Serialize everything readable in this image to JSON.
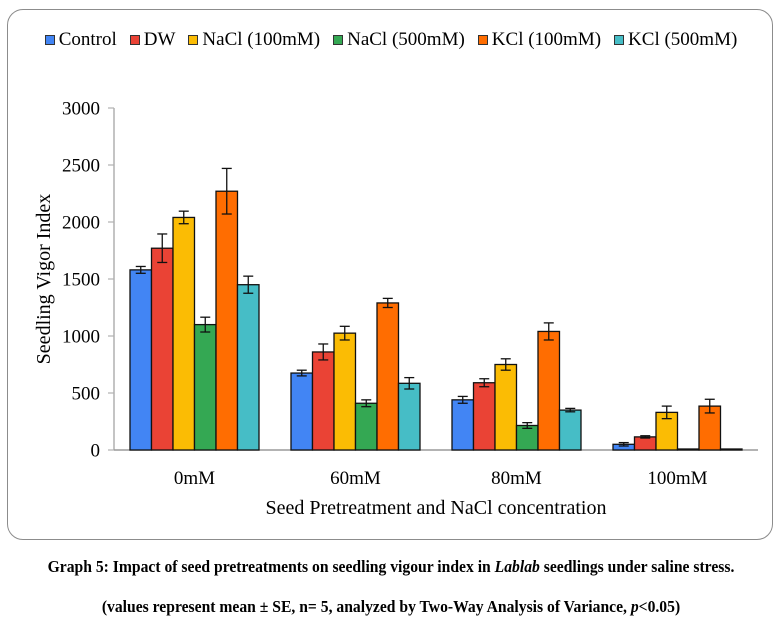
{
  "chart_data": {
    "type": "bar",
    "title": "",
    "xlabel": "Seed Pretreatment and NaCl concentration",
    "ylabel": "Seedling Vigor Index",
    "ylim": [
      0,
      3000
    ],
    "yticks": [
      0,
      500,
      1000,
      1500,
      2000,
      2500,
      3000
    ],
    "grid": false,
    "legend_position": "top",
    "categories": [
      "0mM",
      "60mM",
      "80mM",
      "100mM"
    ],
    "series": [
      {
        "name": "Control",
        "color": "#4285f4",
        "values": [
          1580,
          675,
          440,
          50
        ],
        "errors": [
          30,
          25,
          30,
          15
        ]
      },
      {
        "name": "DW",
        "color": "#ea4335",
        "values": [
          1770,
          860,
          590,
          115
        ],
        "errors": [
          125,
          70,
          35,
          10
        ]
      },
      {
        "name": "NaCl (100mM)",
        "color": "#fbbc04",
        "values": [
          2040,
          1025,
          750,
          330
        ],
        "errors": [
          55,
          60,
          50,
          55
        ]
      },
      {
        "name": "NaCl (500mM)",
        "color": "#34a853",
        "values": [
          1100,
          410,
          215,
          5
        ],
        "errors": [
          65,
          30,
          25,
          0
        ]
      },
      {
        "name": "KCl (100mM)",
        "color": "#ff6d01",
        "values": [
          2270,
          1290,
          1040,
          385
        ],
        "errors": [
          200,
          40,
          75,
          60
        ]
      },
      {
        "name": "KCl (500mM)",
        "color": "#46bdc6",
        "values": [
          1450,
          585,
          350,
          5
        ],
        "errors": [
          75,
          50,
          15,
          0
        ]
      }
    ]
  },
  "caption": {
    "line1_prefix": "Graph 5: Impact of seed pretreatments on seedling vigour index in ",
    "line1_italic": "Lablab",
    "line1_suffix": " seedlings under saline stress.",
    "line2_prefix": "(values represent mean ± SE, n= 5, analyzed by Two-Way Analysis of Variance, ",
    "line2_italic": "p",
    "line2_suffix": "<0.05)"
  }
}
